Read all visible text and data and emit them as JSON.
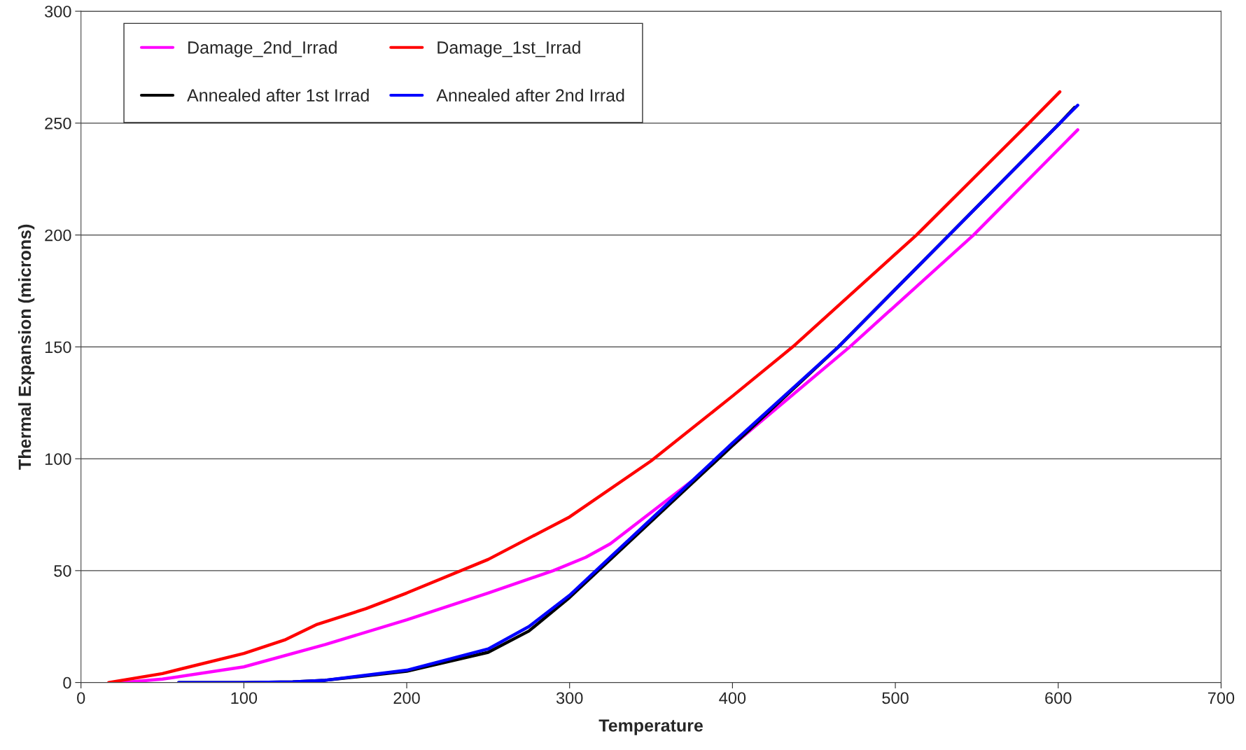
{
  "chart_data": {
    "type": "line",
    "xlabel": "Temperature",
    "ylabel": "Thermal Expansion (microns)",
    "xlim": [
      0,
      700
    ],
    "ylim": [
      0,
      300
    ],
    "xticks": [
      0,
      100,
      200,
      300,
      400,
      500,
      600,
      700
    ],
    "yticks": [
      0,
      50,
      100,
      150,
      200,
      250,
      300
    ],
    "grid": "y",
    "legend": "top left",
    "marker": "none",
    "line_style": "solid",
    "series": [
      {
        "name": "Damage_2nd_Irrad",
        "color": "#ff00ff",
        "x": [
          25,
          50,
          100,
          150,
          200,
          250,
          290,
          310,
          325,
          350,
          375,
          400,
          472,
          548,
          612
        ],
        "values": [
          0,
          1.5,
          7,
          17,
          28,
          40,
          50,
          56,
          62,
          76,
          90,
          106,
          150,
          200,
          247
        ]
      },
      {
        "name": "Damage_1st_Irrad",
        "color": "#ff0000",
        "x": [
          17,
          50,
          100,
          125,
          145,
          175,
          200,
          250,
          300,
          350,
          400,
          437,
          513,
          582,
          601
        ],
        "values": [
          0,
          4,
          13,
          19,
          26,
          33,
          40,
          55,
          74,
          99,
          128,
          150,
          200,
          250,
          264
        ]
      },
      {
        "name": "Annealed after 1st Irrad",
        "color": "#000000",
        "x": [
          60,
          100,
          130,
          150,
          200,
          250,
          275,
          300,
          325,
          350,
          375,
          400,
          465,
          533,
          601,
          610
        ],
        "values": [
          0,
          0,
          0.3,
          1,
          5,
          13.5,
          23,
          38,
          null,
          null,
          null,
          null,
          150,
          200,
          250,
          257
        ]
      },
      {
        "name": "Annealed after 2nd Irrad",
        "color": "#0000ff",
        "x": [
          60,
          100,
          130,
          150,
          200,
          250,
          275,
          300,
          325,
          350,
          375,
          400,
          465,
          533,
          601,
          612
        ],
        "values": [
          0,
          0,
          0.3,
          1,
          5.5,
          15,
          25,
          39,
          56,
          73,
          90,
          107,
          150,
          200,
          250,
          258
        ]
      }
    ]
  }
}
